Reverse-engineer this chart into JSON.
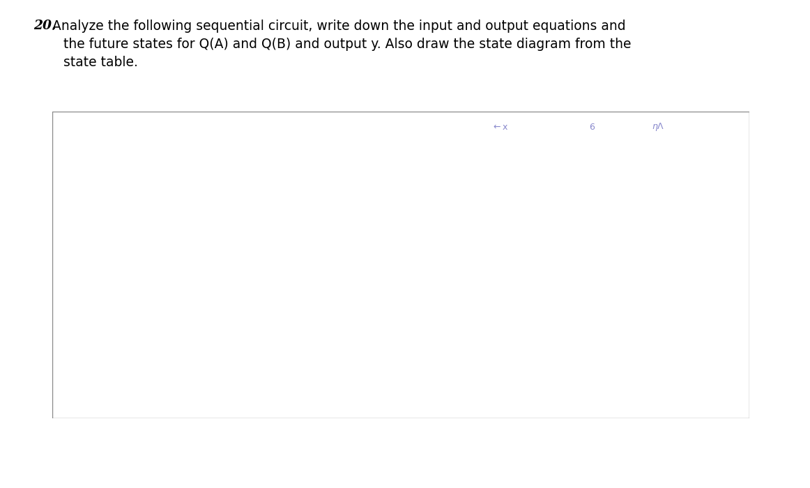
{
  "title_number": "20.",
  "title_text_line1": "Analyze the following sequential circuit, write down the input and output equations and",
  "title_text_line2": "the future states for Q(A) and Q(B) and output y. Also draw the state diagram from the",
  "title_text_line3": "state table.",
  "title_fontsize": 13.5,
  "circuit_bg": "#2a2a2a",
  "wire_color": "#ffffff",
  "page_bg": "#ffffff",
  "annot_color": "#8888cc"
}
